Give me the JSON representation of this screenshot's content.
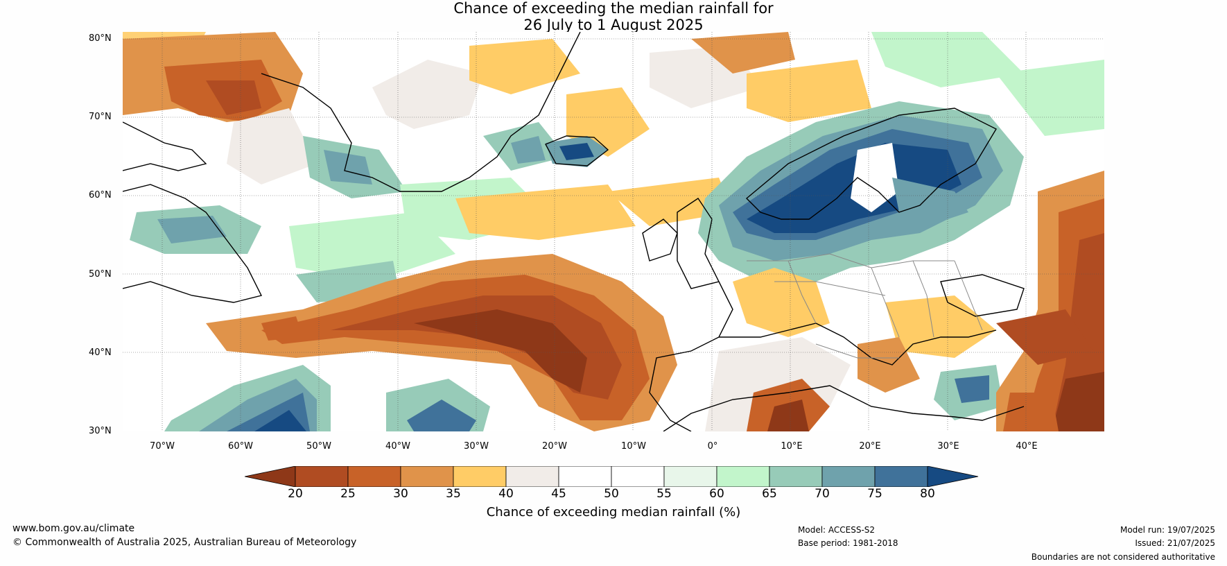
{
  "title": {
    "line1": "Chance of exceeding the median rainfall for",
    "line2": "26 July to 1 August 2025"
  },
  "map": {
    "lat_labels": [
      "80°N",
      "70°N",
      "60°N",
      "50°N",
      "40°N",
      "30°N"
    ],
    "lon_labels": [
      "70°W",
      "60°W",
      "50°W",
      "40°W",
      "30°W",
      "20°W",
      "10°W",
      "0°",
      "10°E",
      "20°E",
      "30°E",
      "40°E"
    ],
    "extent": {
      "lon": [
        -75,
        50
      ],
      "lat": [
        30,
        81
      ]
    },
    "gridlines": true
  },
  "colorbar": {
    "ticks": [
      "20",
      "25",
      "30",
      "35",
      "40",
      "45",
      "50",
      "55",
      "60",
      "65",
      "70",
      "75",
      "80"
    ],
    "colors": [
      "#8e3818",
      "#b04c22",
      "#c86228",
      "#e0934a",
      "#ffcc66",
      "#f1ece8",
      "#ffffff",
      "#ffffff",
      "#e8f6ea",
      "#c2f5cb",
      "#97cbb8",
      "#6fa2ac",
      "#40729a",
      "#164a82"
    ],
    "label": "Chance of exceeding median rainfall (%)"
  },
  "footer": {
    "website": "www.bom.gov.au/climate",
    "copyright": "© Commonwealth of Australia 2025, Australian Bureau of Meteorology",
    "model": "Model: ACCESS-S2",
    "base_period": "Base period: 1981-2018",
    "model_run": "Model run: 19/07/2025",
    "issued": "Issued: 21/07/2025",
    "boundaries": "Boundaries are not considered authoritative"
  }
}
